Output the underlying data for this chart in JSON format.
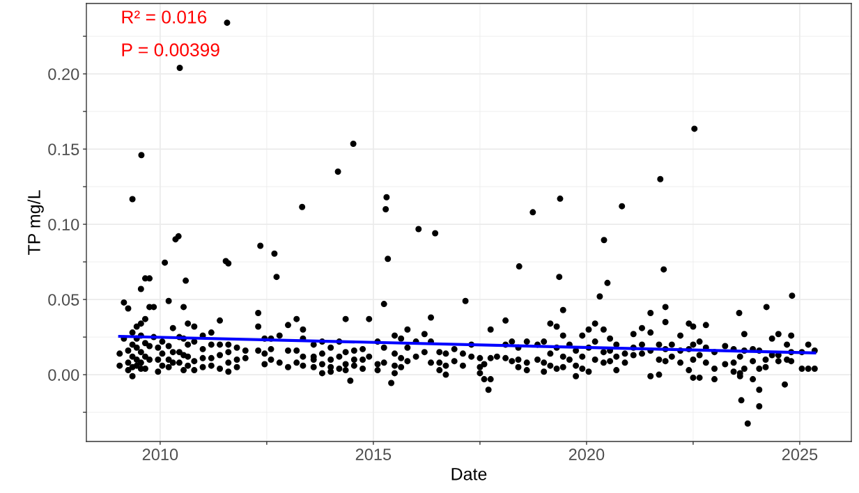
{
  "chart_data": {
    "type": "scatter",
    "xlabel": "Date",
    "ylabel": "TP mg/L",
    "annotations": [
      "R² = 0.016",
      "P = 0.00399"
    ],
    "xlim": [
      2008.27,
      2026.21
    ],
    "ylim": [
      -0.0444,
      0.2468
    ],
    "xticks": [
      2010,
      {
        "value": 2012.5,
        "label": null
      },
      2015,
      {
        "value": 2017.5,
        "label": null
      },
      2020,
      {
        "value": 2022.5,
        "label": null
      },
      2025
    ],
    "yticks": [
      {
        "value": -0.025,
        "label": null
      },
      {
        "value": 0,
        "label": "0.00"
      },
      {
        "value": 0.025,
        "label": null
      },
      {
        "value": 0.05,
        "label": "0.05"
      },
      {
        "value": 0.075,
        "label": null
      },
      {
        "value": 0.1,
        "label": "0.10"
      },
      {
        "value": 0.125,
        "label": null
      },
      {
        "value": 0.15,
        "label": "0.15"
      },
      {
        "value": 0.175,
        "label": null
      },
      {
        "value": 0.2,
        "label": "0.20"
      },
      {
        "value": 0.225,
        "label": null
      }
    ],
    "grid": true,
    "marker": "circle",
    "series": [
      {
        "color": "#000000",
        "x": [
          2009.35,
          2009.56,
          2010.46,
          2011.57,
          2010.43,
          2010.36,
          2010.11,
          2010.6,
          2011.54,
          2011.6,
          2012.35,
          2012.68,
          2012.73,
          2013.33,
          2014.17,
          2014.53,
          2015.31,
          2015.29,
          2015.34,
          2016.06,
          2016.45,
          2017.16,
          2018.42,
          2018.74,
          2019.38,
          2019.36,
          2020.41,
          2020.49,
          2020.31,
          2020.83,
          2021.73,
          2021.81,
          2022.53,
          2024.82,
          2024.22,
          2023.58,
          2023.78,
          2023.63,
          2024.05,
          2017.7,
          2015.42,
          2014.46,
          2024.65
        ],
        "values": [
          0.1167,
          0.146,
          0.204,
          0.234,
          0.092,
          0.09,
          0.0745,
          0.0625,
          0.0755,
          0.074,
          0.0857,
          0.0805,
          0.065,
          0.1115,
          0.135,
          0.1535,
          0.118,
          0.11,
          0.077,
          0.0968,
          0.094,
          0.049,
          0.072,
          0.108,
          0.117,
          0.065,
          0.0895,
          0.061,
          0.052,
          0.112,
          0.13,
          0.07,
          0.1635,
          0.0525,
          0.045,
          0.041,
          -0.0325,
          -0.017,
          -0.021,
          -0.01,
          -0.0055,
          -0.004,
          -0.0065
        ]
      },
      {
        "color": "#000000",
        "x": [
          2009.05,
          2009.05,
          2009.15,
          2009.15,
          2009.25,
          2009.25,
          2009.25,
          2009.25,
          2009.35,
          2009.35,
          2009.35,
          2009.35,
          2009.35,
          2009.45,
          2009.45,
          2009.45,
          2009.45,
          2009.45,
          2009.55,
          2009.55,
          2009.55,
          2009.55,
          2009.55,
          2009.55,
          2009.65,
          2009.65,
          2009.65,
          2009.65,
          2009.65,
          2009.75,
          2009.75,
          2009.75,
          2009.75,
          2009.85,
          2009.85,
          2009.95,
          2009.95,
          2009.95,
          2010.05,
          2010.05,
          2010.05,
          2010.2,
          2010.2,
          2010.2,
          2010.2,
          2010.3,
          2010.3,
          2010.3,
          2010.45,
          2010.45,
          2010.45,
          2010.55,
          2010.55,
          2010.55,
          2010.55,
          2010.65,
          2010.65,
          2010.65,
          2010.65,
          2010.8,
          2010.8,
          2010.8,
          2010.8,
          2011.0,
          2011.0,
          2011.0,
          2011.0,
          2011.2,
          2011.2,
          2011.2,
          2011.2,
          2011.4,
          2011.4,
          2011.4,
          2011.4,
          2011.6,
          2011.6,
          2011.6,
          2011.6,
          2011.8,
          2011.8,
          2011.8,
          2012.0,
          2012.0,
          2012.3,
          2012.3,
          2012.3,
          2012.45,
          2012.45,
          2012.45,
          2012.6,
          2012.6,
          2012.6,
          2012.8,
          2012.8,
          2013.0,
          2013.0,
          2013.0,
          2013.2,
          2013.2,
          2013.2,
          2013.35,
          2013.35,
          2013.35,
          2013.35,
          2013.6,
          2013.6,
          2013.6,
          2013.6,
          2013.8,
          2013.8,
          2013.8,
          2013.8,
          2014.0,
          2014.0,
          2014.0,
          2014.0,
          2014.2,
          2014.2,
          2014.2,
          2014.35,
          2014.35,
          2014.35,
          2014.35,
          2014.55,
          2014.55,
          2014.55,
          2014.75,
          2014.75,
          2014.75,
          2014.9,
          2014.9,
          2015.1,
          2015.1,
          2015.1,
          2015.25,
          2015.25,
          2015.25,
          2015.5,
          2015.5,
          2015.5,
          2015.5,
          2015.65,
          2015.65,
          2015.65,
          2015.8,
          2015.8,
          2015.8,
          2016.0,
          2016.0,
          2016.2,
          2016.2,
          2016.35,
          2016.35,
          2016.35,
          2016.55,
          2016.55,
          2016.55,
          2016.7,
          2016.7,
          2016.7,
          2016.9,
          2016.9,
          2017.1,
          2017.1,
          2017.3,
          2017.3,
          2017.5,
          2017.5,
          2017.5,
          2017.6,
          2017.6,
          2017.75,
          2017.75,
          2017.75,
          2017.9,
          2018.1,
          2018.1,
          2018.1,
          2018.25,
          2018.25,
          2018.4,
          2018.4,
          2018.4,
          2018.6,
          2018.6,
          2018.6,
          2018.85,
          2018.85,
          2019.0,
          2019.0,
          2019.0,
          2019.15,
          2019.15,
          2019.15,
          2019.3,
          2019.3,
          2019.3,
          2019.45,
          2019.45,
          2019.45,
          2019.45,
          2019.6,
          2019.6,
          2019.75,
          2019.75,
          2019.75,
          2019.9,
          2019.9,
          2019.9,
          2020.05,
          2020.05,
          2020.05,
          2020.2,
          2020.2,
          2020.2,
          2020.4,
          2020.4,
          2020.4,
          2020.55,
          2020.55,
          2020.55,
          2020.7,
          2020.7,
          2020.7,
          2020.9,
          2020.9,
          2021.1,
          2021.1,
          2021.1,
          2021.3,
          2021.3,
          2021.3,
          2021.5,
          2021.5,
          2021.5,
          2021.5,
          2021.7,
          2021.7,
          2021.7,
          2021.85,
          2021.85,
          2021.85,
          2021.85,
          2022.0,
          2022.0,
          2022.2,
          2022.2,
          2022.2,
          2022.4,
          2022.4,
          2022.4,
          2022.5,
          2022.5,
          2022.5,
          2022.5,
          2022.65,
          2022.65,
          2022.65,
          2022.8,
          2022.8,
          2022.8,
          2023.0,
          2023.0,
          2023.0,
          2023.25,
          2023.25,
          2023.45,
          2023.45,
          2023.45,
          2023.6,
          2023.6,
          2023.6,
          2023.7,
          2023.7,
          2023.7,
          2023.9,
          2023.9,
          2023.9,
          2024.05,
          2024.05,
          2024.05,
          2024.2,
          2024.2,
          2024.35,
          2024.35,
          2024.5,
          2024.5,
          2024.5,
          2024.7,
          2024.7,
          2024.8,
          2024.8,
          2024.8,
          2025.05,
          2025.05,
          2025.2,
          2025.2,
          2025.35,
          2025.35
        ],
        "values": [
          0.014,
          0.006,
          0.048,
          0.024,
          0.044,
          0.016,
          0.008,
          0.003,
          0.028,
          0.02,
          0.012,
          -0.001,
          0.005,
          0.032,
          0.024,
          0.01,
          0.018,
          0.006,
          0.034,
          0.026,
          0.015,
          0.008,
          0.004,
          0.057,
          0.064,
          0.037,
          0.021,
          0.012,
          0.004,
          0.064,
          0.045,
          0.019,
          0.01,
          0.045,
          0.025,
          0.018,
          0.01,
          0.002,
          0.014,
          0.006,
          0.022,
          0.049,
          0.019,
          0.01,
          0.005,
          0.031,
          0.015,
          0.008,
          0.025,
          0.015,
          0.008,
          0.045,
          0.024,
          0.013,
          0.003,
          0.034,
          0.02,
          0.012,
          0.006,
          0.032,
          0.022,
          0.009,
          0.003,
          0.026,
          0.017,
          0.011,
          0.005,
          0.028,
          0.02,
          0.011,
          0.006,
          0.036,
          0.02,
          0.013,
          0.004,
          0.02,
          0.015,
          0.008,
          0.002,
          0.018,
          0.01,
          0.005,
          0.016,
          0.011,
          0.041,
          0.032,
          0.016,
          0.024,
          0.014,
          0.007,
          0.024,
          0.017,
          0.01,
          0.026,
          0.008,
          0.033,
          0.016,
          0.005,
          0.037,
          0.016,
          0.008,
          0.03,
          0.024,
          0.012,
          0.006,
          0.02,
          0.012,
          0.005,
          0.01,
          0.022,
          0.014,
          0.007,
          0.001,
          0.018,
          0.01,
          0.002,
          0.005,
          0.022,
          0.012,
          0.004,
          0.037,
          0.015,
          0.007,
          0.003,
          0.016,
          0.01,
          0.006,
          0.017,
          0.01,
          0.004,
          0.037,
          0.012,
          0.022,
          0.007,
          0.003,
          0.047,
          0.018,
          0.008,
          0.026,
          0.014,
          0.006,
          0.001,
          0.024,
          0.011,
          0.005,
          0.03,
          0.018,
          0.009,
          0.022,
          0.012,
          0.027,
          0.015,
          0.038,
          0.022,
          0.008,
          0.015,
          0.008,
          0.003,
          0.014,
          0.006,
          0.0,
          0.017,
          0.009,
          0.014,
          0.006,
          0.02,
          0.012,
          0.011,
          0.005,
          0.001,
          0.007,
          -0.003,
          0.03,
          0.011,
          -0.003,
          0.012,
          0.036,
          0.02,
          0.011,
          0.022,
          0.009,
          0.018,
          0.01,
          0.005,
          0.022,
          0.008,
          0.003,
          0.02,
          0.01,
          0.022,
          0.008,
          0.002,
          0.034,
          0.014,
          0.006,
          0.032,
          0.018,
          0.004,
          0.043,
          0.026,
          0.012,
          0.005,
          0.02,
          0.01,
          0.016,
          0.006,
          -0.001,
          0.026,
          0.012,
          0.004,
          0.03,
          0.018,
          0.002,
          0.034,
          0.022,
          0.01,
          0.03,
          0.015,
          0.008,
          0.024,
          0.016,
          0.009,
          0.02,
          0.012,
          0.003,
          0.014,
          0.008,
          0.027,
          0.018,
          0.013,
          0.031,
          0.02,
          0.014,
          0.041,
          0.028,
          0.016,
          -0.001,
          0.02,
          0.01,
          0.0,
          0.045,
          0.035,
          0.017,
          0.009,
          0.02,
          0.012,
          0.026,
          0.016,
          0.008,
          0.034,
          0.017,
          0.003,
          0.032,
          0.02,
          0.01,
          -0.002,
          0.022,
          0.013,
          -0.002,
          0.033,
          0.018,
          0.008,
          0.015,
          0.004,
          -0.003,
          0.019,
          0.007,
          0.017,
          0.008,
          0.002,
          0.012,
          0.001,
          -0.001,
          0.027,
          0.016,
          0.004,
          0.017,
          0.009,
          -0.003,
          0.016,
          0.004,
          -0.01,
          0.01,
          0.005,
          0.024,
          0.013,
          0.027,
          0.013,
          0.009,
          0.02,
          0.01,
          0.026,
          0.015,
          0.009,
          0.015,
          0.004,
          0.02,
          0.004,
          0.016,
          0.004
        ]
      },
      {
        "type": "line",
        "color": "#0000ff",
        "x": [
          2009.05,
          2025.35
        ],
        "values": [
          0.0255,
          0.0145
        ],
        "marker": "none"
      }
    ]
  }
}
